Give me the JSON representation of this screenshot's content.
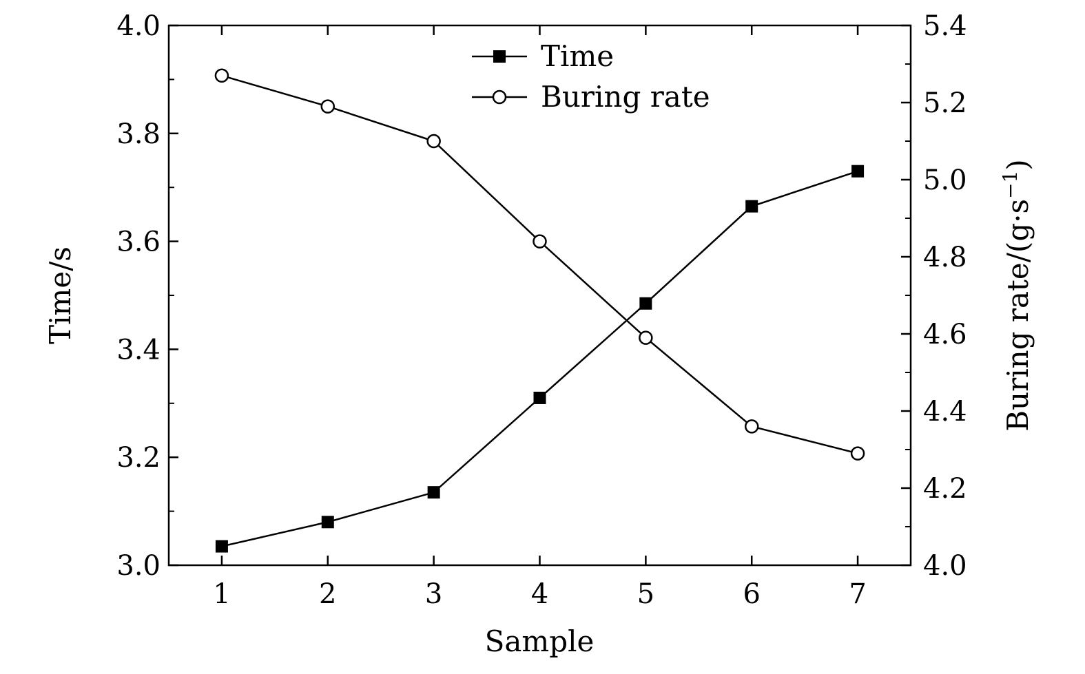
{
  "chart_data": {
    "type": "line",
    "x": [
      1,
      2,
      3,
      4,
      5,
      6,
      7
    ],
    "xlabel": "Sample",
    "xlim": [
      0.5,
      7.5
    ],
    "xticks": [
      "1",
      "2",
      "3",
      "4",
      "5",
      "6",
      "7"
    ],
    "ylabel_left": "Time/s",
    "ylim_left": [
      3.0,
      4.0
    ],
    "yticks_left": [
      "3.0",
      "3.2",
      "3.4",
      "3.6",
      "3.8",
      "4.0"
    ],
    "ylabel_right_main": "Buring rate/(g·s",
    "ylabel_right_sup": "−1",
    "ylabel_right_close": ")",
    "ylim_right": [
      4.0,
      5.4
    ],
    "yticks_right": [
      "4.0",
      "4.2",
      "4.4",
      "4.6",
      "4.8",
      "5.0",
      "5.2",
      "5.4"
    ],
    "grid": false,
    "legend_position": "top-center",
    "series": [
      {
        "name": "Time",
        "axis": "left",
        "marker": "filled-square",
        "values": [
          3.035,
          3.08,
          3.135,
          3.31,
          3.485,
          3.665,
          3.73
        ]
      },
      {
        "name": "Buring rate",
        "axis": "right",
        "marker": "open-circle",
        "values": [
          5.27,
          5.19,
          5.1,
          4.84,
          4.59,
          4.36,
          4.29
        ]
      }
    ],
    "colors": {
      "line": "#000000",
      "marker_fill_open": "#ffffff",
      "background": "#ffffff"
    }
  }
}
